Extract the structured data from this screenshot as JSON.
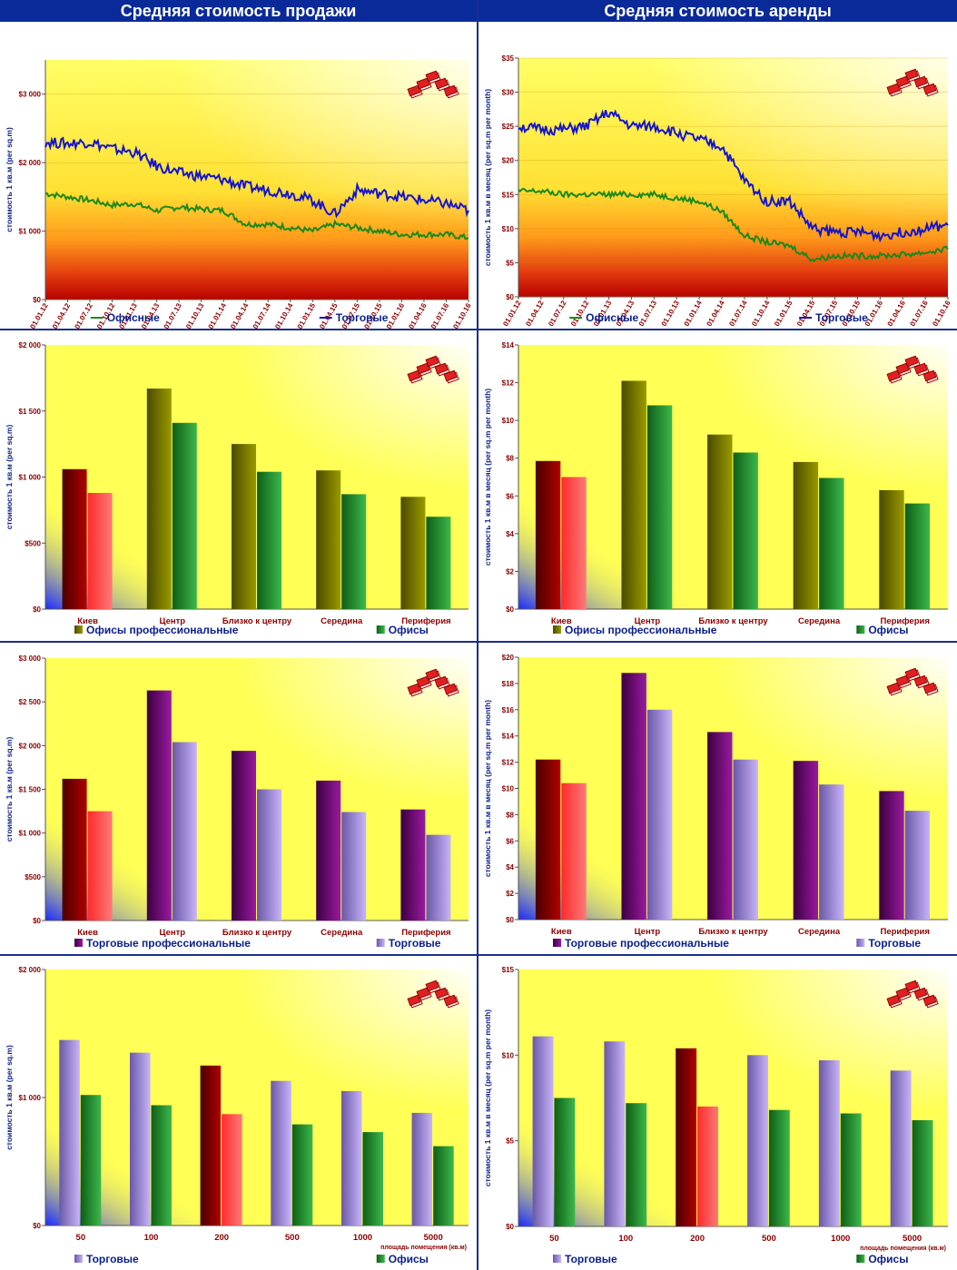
{
  "headers": {
    "sale": "Средняя стоимость продажи",
    "rent": "Средняя стоимость аренды"
  },
  "colors": {
    "header_bg": "#0a2a9a",
    "offices_line": "#1a8a1a",
    "retail_line": "#1515cc",
    "axis_text": "#8b0000",
    "ylabel_text": "#0b1f8a",
    "legend_text": "#0b1f8a"
  },
  "chart_data": [
    {
      "id": "sale-trend",
      "type": "line",
      "ylabel": "стоимость 1 кв.м (per sq.m)",
      "ylim": [
        0,
        3500
      ],
      "yticks": [
        0,
        1000,
        2000,
        3000
      ],
      "ytick_labels": [
        "$0",
        "$1 000",
        "$2 000",
        "$3 000"
      ],
      "categories": [
        "01.01.12",
        "01.04.12",
        "01.07.12",
        "01.10.12",
        "01.01.13",
        "01.04.13",
        "01.07.13",
        "01.10.13",
        "01.01.14",
        "01.04.14",
        "01.07.14",
        "01.10.14",
        "01.01.15",
        "01.04.15",
        "01.07.15",
        "01.10.15",
        "01.01.16",
        "01.04.16",
        "01.07.16",
        "01.10.16"
      ],
      "series": [
        {
          "name": "Офисные",
          "color": "#1a8a1a",
          "values": [
            1550,
            1500,
            1450,
            1380,
            1400,
            1300,
            1350,
            1320,
            1300,
            1100,
            1100,
            1050,
            1000,
            1100,
            1050,
            1000,
            950,
            950,
            950,
            900
          ]
        },
        {
          "name": "Торговые",
          "color": "#1515cc",
          "values": [
            2300,
            2280,
            2300,
            2200,
            2150,
            1950,
            1850,
            1800,
            1750,
            1650,
            1600,
            1550,
            1450,
            1250,
            1600,
            1550,
            1500,
            1450,
            1400,
            1300
          ]
        }
      ],
      "legend_position": "bottom"
    },
    {
      "id": "rent-trend",
      "type": "line",
      "ylabel": "стоимость 1 кв.м в месяц (per sq.m per month)",
      "ylim": [
        0,
        35
      ],
      "yticks": [
        0,
        5,
        10,
        15,
        20,
        25,
        30,
        35
      ],
      "ytick_labels": [
        "$0",
        "$5",
        "$10",
        "$15",
        "$20",
        "$25",
        "$30",
        "$35"
      ],
      "categories": [
        "01.01.12",
        "01.04.12",
        "01.07.12",
        "01.10.12",
        "01.01.13",
        "01.04.13",
        "01.07.13",
        "01.10.13",
        "01.01.14",
        "01.04.14",
        "01.07.14",
        "01.10.14",
        "01.01.15",
        "01.04.15",
        "01.07.15",
        "01.10.15",
        "01.01.16",
        "01.04.16",
        "01.07.16",
        "01.10.16"
      ],
      "series": [
        {
          "name": "Офисные",
          "color": "#1a8a1a",
          "values": [
            15.5,
            15.5,
            15,
            15,
            15,
            15,
            15,
            14.5,
            14,
            12.5,
            9,
            8,
            7.5,
            5.5,
            6,
            6,
            6,
            6.2,
            6.5,
            7
          ]
        },
        {
          "name": "Торговые",
          "color": "#1515cc",
          "values": [
            25,
            24.5,
            24.5,
            25,
            27,
            25,
            25,
            24,
            23,
            22,
            17,
            14,
            14,
            10,
            9.5,
            9.5,
            9,
            9.5,
            10,
            10.5
          ]
        }
      ],
      "legend_position": "bottom"
    },
    {
      "id": "sale-offices-district",
      "type": "bar",
      "ylabel": "стоимость 1 кв.м (per sq.m)",
      "ylim": [
        0,
        2000
      ],
      "yticks": [
        0,
        500,
        1000,
        1500,
        2000
      ],
      "ytick_labels": [
        "$0",
        "$500",
        "$1 000",
        "$1 500",
        "$2 000"
      ],
      "categories": [
        "Киев",
        "Центр",
        "Близко к центру",
        "Середина",
        "Периферия"
      ],
      "series": [
        {
          "name": "Офисы профессиональные",
          "values": [
            1060,
            1670,
            1250,
            1050,
            850
          ]
        },
        {
          "name": "Офисы",
          "values": [
            880,
            1410,
            1040,
            870,
            700
          ]
        }
      ],
      "legend_position": "bottom"
    },
    {
      "id": "rent-offices-district",
      "type": "bar",
      "ylabel": "стоимость 1 кв.м в месяц (per sq.m per month)",
      "ylim": [
        0,
        14
      ],
      "yticks": [
        0,
        2,
        4,
        6,
        8,
        10,
        12,
        14
      ],
      "ytick_labels": [
        "$0",
        "$2",
        "$4",
        "$6",
        "$8",
        "$10",
        "$12",
        "$14"
      ],
      "categories": [
        "Киев",
        "Центр",
        "Близко к центру",
        "Середина",
        "Периферия"
      ],
      "series": [
        {
          "name": "Офисы профессиональные",
          "values": [
            7.85,
            12.1,
            9.25,
            7.8,
            6.3
          ]
        },
        {
          "name": "Офисы",
          "values": [
            7.0,
            10.8,
            8.3,
            6.95,
            5.6
          ]
        }
      ],
      "legend_position": "bottom"
    },
    {
      "id": "sale-retail-district",
      "type": "bar",
      "ylabel": "стоимость 1 кв.м (per sq.m)",
      "ylim": [
        0,
        3000
      ],
      "yticks": [
        0,
        500,
        1000,
        1500,
        2000,
        2500,
        3000
      ],
      "ytick_labels": [
        "$0",
        "$500",
        "$1 000",
        "$1 500",
        "$2 000",
        "$2 500",
        "$3 000"
      ],
      "categories": [
        "Киев",
        "Центр",
        "Близко к центру",
        "Середина",
        "Периферия"
      ],
      "series": [
        {
          "name": "Торговые профессиональные",
          "values": [
            1620,
            2630,
            1940,
            1600,
            1270
          ]
        },
        {
          "name": "Торговые",
          "values": [
            1250,
            2040,
            1500,
            1240,
            980
          ]
        }
      ],
      "legend_position": "bottom"
    },
    {
      "id": "rent-retail-district",
      "type": "bar",
      "ylabel": "стоимость 1 кв.м в месяц (per sq.m per month)",
      "ylim": [
        0,
        20
      ],
      "yticks": [
        0,
        2,
        4,
        6,
        8,
        10,
        12,
        14,
        16,
        18,
        20
      ],
      "ytick_labels": [
        "$0",
        "$2",
        "$4",
        "$6",
        "$8",
        "$10",
        "$12",
        "$14",
        "$16",
        "$18",
        "$20"
      ],
      "categories": [
        "Киев",
        "Центр",
        "Близко к центру",
        "Середина",
        "Периферия"
      ],
      "series": [
        {
          "name": "Торговые профессиональные",
          "values": [
            12.2,
            18.8,
            14.3,
            12.1,
            9.8
          ]
        },
        {
          "name": "Торговые",
          "values": [
            10.4,
            16.0,
            12.2,
            10.3,
            8.3
          ]
        }
      ],
      "legend_position": "bottom"
    },
    {
      "id": "sale-by-area",
      "type": "bar",
      "ylabel": "стоимость 1 кв.м (per sq.m)",
      "xlabel": "площадь помещения (кв.м)",
      "ylim": [
        0,
        2000
      ],
      "yticks": [
        0,
        1000,
        2000
      ],
      "ytick_labels": [
        "$0",
        "$1 000",
        "$2 000"
      ],
      "categories": [
        "50",
        "100",
        "200",
        "500",
        "1000",
        "5000"
      ],
      "series": [
        {
          "name": "Торговые",
          "values": [
            1450,
            1350,
            1250,
            1130,
            1050,
            880
          ]
        },
        {
          "name": "Офисы",
          "values": [
            1020,
            940,
            870,
            790,
            730,
            620
          ]
        }
      ],
      "legend_position": "bottom"
    },
    {
      "id": "rent-by-area",
      "type": "bar",
      "ylabel": "стоимость 1 кв.м в месяц (per sq.m per month)",
      "xlabel": "площадь помещения (кв.м)",
      "ylim": [
        0,
        15
      ],
      "yticks": [
        0,
        5,
        10,
        15
      ],
      "ytick_labels": [
        "$0",
        "$5",
        "$10",
        "$15"
      ],
      "categories": [
        "50",
        "100",
        "200",
        "500",
        "1000",
        "5000"
      ],
      "series": [
        {
          "name": "Торговые",
          "values": [
            11.1,
            10.8,
            10.4,
            10.0,
            9.7,
            9.1
          ]
        },
        {
          "name": "Офисы",
          "values": [
            7.5,
            7.2,
            7.0,
            6.8,
            6.6,
            6.2
          ]
        }
      ],
      "legend_position": "bottom"
    }
  ]
}
